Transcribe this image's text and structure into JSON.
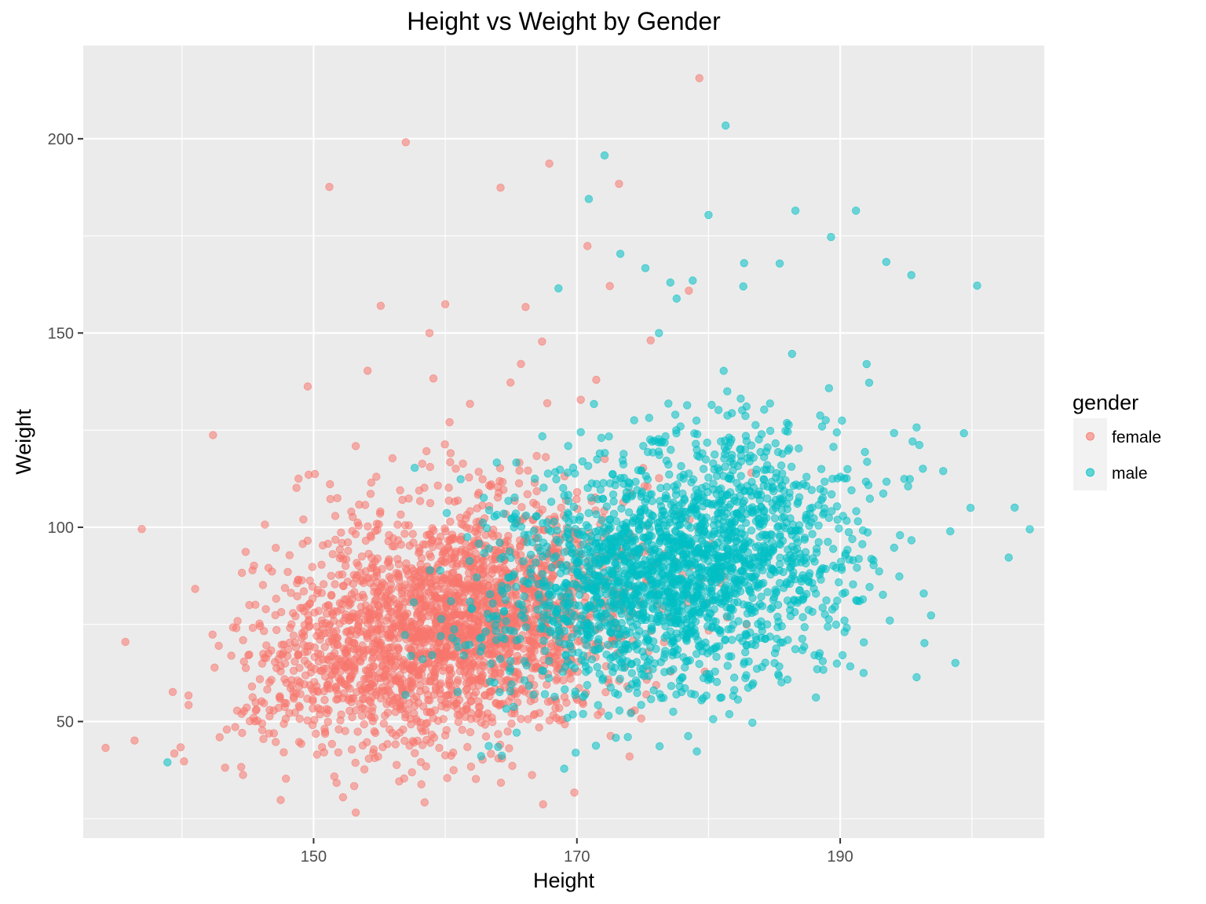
{
  "chart_data": {
    "type": "scatter",
    "title": "Height vs Weight by Gender",
    "xlabel": "Height",
    "ylabel": "Weight",
    "xlim": [
      132.5,
      205.5
    ],
    "ylim": [
      20,
      224
    ],
    "x_ticks": [
      150,
      170,
      190
    ],
    "y_ticks": [
      50,
      100,
      150,
      200
    ],
    "grid": true,
    "legend_position": "right",
    "legend_title": "gender",
    "series": [
      {
        "name": "female",
        "color": "#F8766D",
        "generated_count": 2500,
        "center": [
          160.5,
          73
        ],
        "spread": [
          7.2,
          14
        ],
        "outliers": [
          [
            135.7,
            70.5
          ],
          [
            134.2,
            43.2
          ],
          [
            136.4,
            45.1
          ],
          [
            139.3,
            57.6
          ],
          [
            140.5,
            56.7
          ],
          [
            144.5,
            38.3
          ],
          [
            146.1,
            47.8
          ],
          [
            146.3,
            100.7
          ],
          [
            147.5,
            29.8
          ],
          [
            147.9,
            35.3
          ],
          [
            150.1,
            113.7
          ],
          [
            151.2,
            187.6
          ],
          [
            153.2,
            120.9
          ],
          [
            154.1,
            140.3
          ],
          [
            155.1,
            157.0
          ],
          [
            156.5,
            34.6
          ],
          [
            157.0,
            199.1
          ],
          [
            158.8,
            150.0
          ],
          [
            159.1,
            138.3
          ],
          [
            160.0,
            157.4
          ],
          [
            164.2,
            187.4
          ],
          [
            166.1,
            156.7
          ],
          [
            167.9,
            193.6
          ],
          [
            170.8,
            172.4
          ],
          [
            173.2,
            188.4
          ],
          [
            174.0,
            41.0
          ],
          [
            175.6,
            148.1
          ],
          [
            178.5,
            160.9
          ],
          [
            179.3,
            215.6
          ],
          [
            172.5,
            162.1
          ]
        ]
      },
      {
        "name": "male",
        "color": "#00BFC4",
        "generated_count": 2200,
        "center": [
          177.5,
          88
        ],
        "spread": [
          6.8,
          15
        ],
        "outliers": [
          [
            138.9,
            39.5
          ],
          [
            164.3,
            41.2
          ],
          [
            168.6,
            161.5
          ],
          [
            170.9,
            184.5
          ],
          [
            172.1,
            195.7
          ],
          [
            173.3,
            170.4
          ],
          [
            175.2,
            166.7
          ],
          [
            177.1,
            163.0
          ],
          [
            178.8,
            163.5
          ],
          [
            180.0,
            180.4
          ],
          [
            181.3,
            203.4
          ],
          [
            182.7,
            168.0
          ],
          [
            185.4,
            167.9
          ],
          [
            186.6,
            181.5
          ],
          [
            189.3,
            174.7
          ],
          [
            191.2,
            181.5
          ],
          [
            193.5,
            168.3
          ],
          [
            195.4,
            164.9
          ],
          [
            200.4,
            162.2
          ],
          [
            199.4,
            124.2
          ],
          [
            199.9,
            105.0
          ],
          [
            202.8,
            92.2
          ],
          [
            204.4,
            99.5
          ],
          [
            196.4,
            70.2
          ],
          [
            195.8,
            61.4
          ],
          [
            196.9,
            77.3
          ],
          [
            195.8,
            125.7
          ],
          [
            192.2,
            137.2
          ]
        ]
      }
    ]
  }
}
